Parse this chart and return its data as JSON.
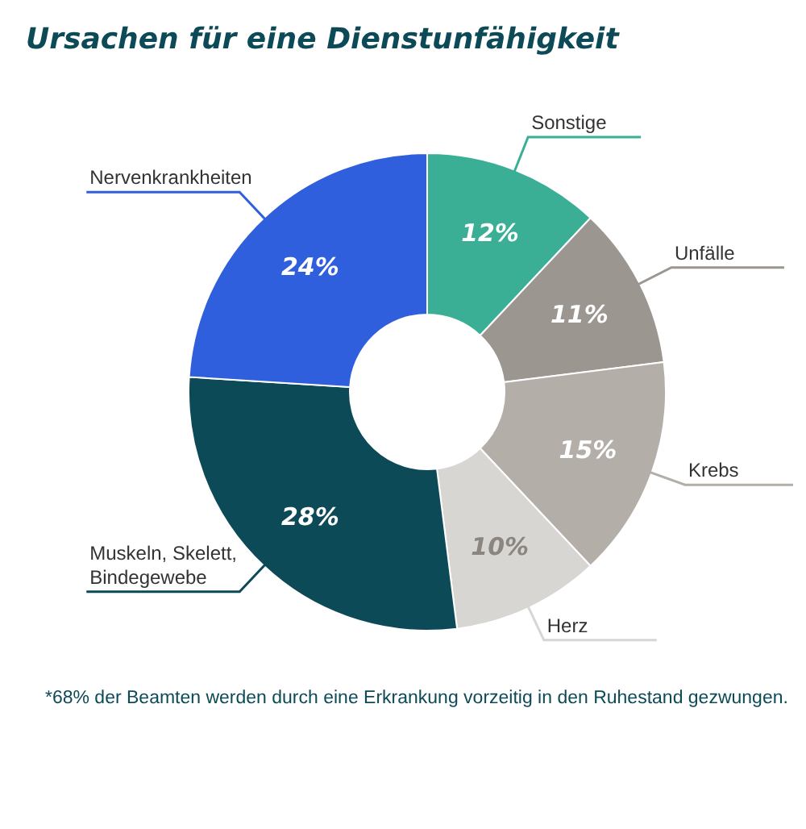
{
  "chart_data": {
    "type": "donut",
    "title": "Ursachen für eine Dienstunfähigkeit",
    "categories": [
      "Sonstige",
      "Unfälle",
      "Krebs",
      "Herz",
      "Muskeln, Skelett, Bindegewebe",
      "Nervenkrankheiten"
    ],
    "values": [
      12,
      11,
      15,
      10,
      28,
      24
    ],
    "value_labels": [
      "12%",
      "11%",
      "15%",
      "10%",
      "28%",
      "24%"
    ],
    "colors": [
      "#3aaf95",
      "#9b968f",
      "#b3aea8",
      "#d8d6d3",
      "#0c4a57",
      "#2f5fdc"
    ],
    "annotations": [
      "*68% der Beamten werden durch eine Erkrankung vorzeitig in den Ruhestand gezwungen."
    ]
  }
}
